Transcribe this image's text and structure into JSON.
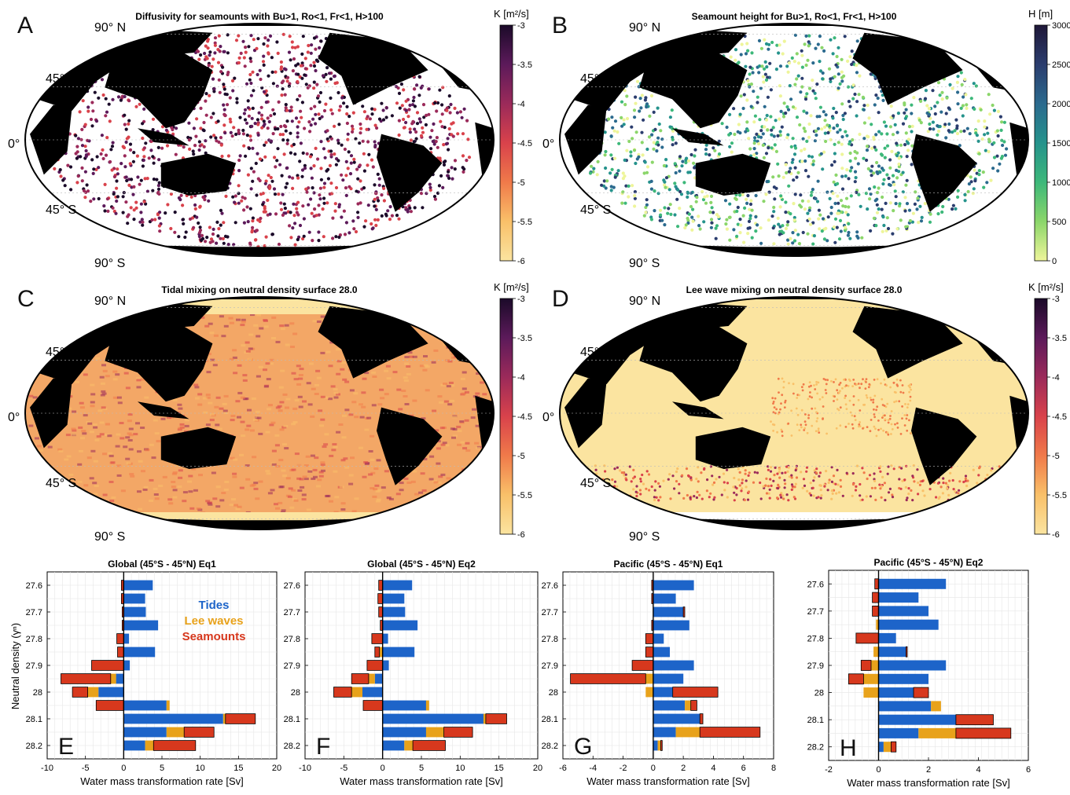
{
  "figure": {
    "maps": [
      {
        "letter": "A",
        "title": "Diffusivity for seamounts with Bu>1, Ro<1, Fr<1, H>100",
        "lat_labels": [
          "90° N",
          "45° N",
          "0°",
          "45° S",
          "90° S"
        ],
        "colorbar": {
          "label": "K [m²/s]",
          "ticks": [
            "-3",
            "-3.5",
            "-4",
            "-4.5",
            "-5",
            "-5.5",
            "-6"
          ],
          "colors": [
            "#1b0a29",
            "#5c1a5a",
            "#9b2a5a",
            "#d9424b",
            "#f07a4a",
            "#f9c069",
            "#fbe4a0"
          ]
        },
        "style": "dots-magma"
      },
      {
        "letter": "B",
        "title": "Seamount height for Bu>1, Ro<1, Fr<1, H>100",
        "lat_labels": [
          "90° N",
          "45° N",
          "0°",
          "45° S",
          "90° S"
        ],
        "colorbar": {
          "label": "H [m]",
          "ticks": [
            "3000",
            "2500",
            "2000",
            "1500",
            "1000",
            "500",
            "0"
          ],
          "colors": [
            "#1f1738",
            "#2b3d6e",
            "#2b6a8e",
            "#25938c",
            "#3db87a",
            "#8bd66a",
            "#eef59a"
          ]
        },
        "style": "dots-viridis"
      },
      {
        "letter": "C",
        "title": "Tidal mixing on neutral density surface 28.0",
        "lat_labels": [
          "90° N",
          "45° N",
          "0°",
          "45° S",
          "90° S"
        ],
        "colorbar": {
          "label": "K [m²/s]",
          "ticks": [
            "-3",
            "-3.5",
            "-4",
            "-4.5",
            "-5",
            "-5.5",
            "-6"
          ],
          "colors": [
            "#1b0a29",
            "#5c1a5a",
            "#9b2a5a",
            "#d9424b",
            "#f07a4a",
            "#f9c069",
            "#fbe4a0"
          ]
        },
        "style": "fill-tidal"
      },
      {
        "letter": "D",
        "title": "Lee wave mixing on neutral density surface 28.0",
        "lat_labels": [
          "90° N",
          "45° N",
          "0°",
          "45° S",
          "90° S"
        ],
        "colorbar": {
          "label": "K [m²/s]",
          "ticks": [
            "-3",
            "-3.5",
            "-4",
            "-4.5",
            "-5",
            "-5.5",
            "-6"
          ],
          "colors": [
            "#1b0a29",
            "#5c1a5a",
            "#9b2a5a",
            "#d9424b",
            "#f07a4a",
            "#f9c069",
            "#fbe4a0"
          ]
        },
        "style": "fill-lee"
      }
    ],
    "legend": {
      "tides": "Tides",
      "lee": "Lee waves",
      "seamounts": "Seamounts"
    },
    "colors": {
      "tides": "#1d64c9",
      "lee": "#e8a21b",
      "seamounts": "#d7381d",
      "land": "#000000"
    },
    "ylabel": "Neutral density (γⁿ)",
    "xlabel": "Water mass transformation rate [Sv]"
  },
  "chart_data": [
    {
      "type": "bar",
      "letter": "E",
      "title": "Global (45°S - 45°N) Eq1",
      "xlim": [
        -10,
        20
      ],
      "xticks": [
        "-10",
        "-5",
        "0",
        "5",
        "10",
        "15",
        "20"
      ],
      "categories": [
        "27.6",
        "27.7",
        "27.8",
        "27.9",
        "28",
        "28.1",
        "28.2"
      ],
      "bars": [
        {
          "y": 27.6,
          "tides": [
            0,
            3.8
          ],
          "lee": null,
          "sea": [
            -0.3,
            0
          ]
        },
        {
          "y": 27.65,
          "tides": [
            0,
            2.8
          ],
          "lee": null,
          "sea": [
            -0.3,
            0
          ]
        },
        {
          "y": 27.7,
          "tides": [
            0,
            2.9
          ],
          "lee": null,
          "sea": [
            -0.2,
            0
          ]
        },
        {
          "y": 27.75,
          "tides": [
            0,
            4.5
          ],
          "lee": null,
          "sea": [
            -0.2,
            0
          ]
        },
        {
          "y": 27.8,
          "tides": [
            0,
            0.7
          ],
          "lee": null,
          "sea": [
            -0.9,
            0
          ]
        },
        {
          "y": 27.85,
          "tides": [
            0,
            4.1
          ],
          "lee": null,
          "sea": [
            -0.8,
            0
          ]
        },
        {
          "y": 27.9,
          "tides": [
            0,
            0.8
          ],
          "lee": null,
          "sea": [
            -4.2,
            0
          ]
        },
        {
          "y": 27.95,
          "tides": [
            -1,
            0
          ],
          "lee": [
            -1.7,
            -1
          ],
          "sea": [
            -8.2,
            -1.7
          ]
        },
        {
          "y": 28.0,
          "tides": [
            -3.3,
            0
          ],
          "lee": [
            -4.7,
            -3.3
          ],
          "sea": [
            -6.7,
            -4.7
          ]
        },
        {
          "y": 28.05,
          "tides": [
            0,
            5.6
          ],
          "lee": [
            5.6,
            6.0
          ],
          "sea": [
            -3.6,
            0
          ]
        },
        {
          "y": 28.1,
          "tides": [
            0,
            13.0
          ],
          "lee": [
            13.0,
            13.3
          ],
          "sea": [
            13.3,
            17.2
          ]
        },
        {
          "y": 28.15,
          "tides": [
            0,
            5.6
          ],
          "lee": [
            5.6,
            7.9
          ],
          "sea": [
            7.9,
            11.8
          ]
        },
        {
          "y": 28.2,
          "tides": [
            0,
            2.8
          ],
          "lee": [
            2.8,
            3.9
          ],
          "sea": [
            3.9,
            9.4
          ]
        }
      ]
    },
    {
      "type": "bar",
      "letter": "F",
      "title": "Global (45°S - 45°N) Eq2",
      "xlim": [
        -10,
        20
      ],
      "xticks": [
        "-10",
        "-5",
        "0",
        "5",
        "10",
        "15",
        "20"
      ],
      "categories": [
        "27.6",
        "27.7",
        "27.8",
        "27.9",
        "28",
        "28.1",
        "28.2"
      ],
      "bars": [
        {
          "y": 27.6,
          "tides": [
            0,
            3.8
          ],
          "lee": null,
          "sea": [
            -0.5,
            0
          ]
        },
        {
          "y": 27.65,
          "tides": [
            0,
            2.8
          ],
          "lee": null,
          "sea": [
            -0.6,
            0
          ]
        },
        {
          "y": 27.7,
          "tides": [
            0,
            2.9
          ],
          "lee": null,
          "sea": [
            -0.5,
            0
          ]
        },
        {
          "y": 27.75,
          "tides": [
            0,
            4.5
          ],
          "lee": null,
          "sea": [
            -0.3,
            0
          ]
        },
        {
          "y": 27.8,
          "tides": [
            0,
            0.7
          ],
          "lee": null,
          "sea": [
            -1.4,
            0
          ]
        },
        {
          "y": 27.85,
          "tides": [
            0,
            4.1
          ],
          "lee": [
            -0.4,
            0
          ],
          "sea": [
            -1.0,
            -0.4
          ]
        },
        {
          "y": 27.9,
          "tides": [
            0,
            0.8
          ],
          "lee": null,
          "sea": [
            -2.0,
            0
          ]
        },
        {
          "y": 27.95,
          "tides": [
            -1,
            0
          ],
          "lee": [
            -1.8,
            -1
          ],
          "sea": [
            -4.0,
            -1.8
          ]
        },
        {
          "y": 28.0,
          "tides": [
            -2.6,
            0
          ],
          "lee": [
            -4.0,
            -2.6
          ],
          "sea": [
            -6.3,
            -4.0
          ]
        },
        {
          "y": 28.05,
          "tides": [
            0,
            5.6
          ],
          "lee": [
            5.6,
            6.0
          ],
          "sea": [
            -2.5,
            0
          ]
        },
        {
          "y": 28.1,
          "tides": [
            0,
            13.0
          ],
          "lee": [
            13.0,
            13.3
          ],
          "sea": [
            13.3,
            16.0
          ]
        },
        {
          "y": 28.15,
          "tides": [
            0,
            5.6
          ],
          "lee": [
            5.6,
            7.9
          ],
          "sea": [
            7.9,
            11.6
          ]
        },
        {
          "y": 28.2,
          "tides": [
            0,
            2.8
          ],
          "lee": [
            2.8,
            3.9
          ],
          "sea": [
            3.9,
            8.1
          ]
        }
      ]
    },
    {
      "type": "bar",
      "letter": "G",
      "title": "Pacific (45°S - 45°N) Eq1",
      "xlim": [
        -6,
        8
      ],
      "xticks": [
        "-6",
        "-4",
        "-2",
        "0",
        "2",
        "4",
        "6",
        "8"
      ],
      "categories": [
        "27.6",
        "27.7",
        "27.8",
        "27.9",
        "28",
        "28.1",
        "28.2"
      ],
      "bars": [
        {
          "y": 27.6,
          "tides": [
            0,
            2.7
          ],
          "lee": null,
          "sea": [
            -0.1,
            0
          ]
        },
        {
          "y": 27.65,
          "tides": [
            0,
            1.5
          ],
          "lee": null,
          "sea": [
            -0.1,
            0
          ]
        },
        {
          "y": 27.7,
          "tides": [
            0,
            2.0
          ],
          "lee": null,
          "sea": [
            2.0,
            2.1
          ]
        },
        {
          "y": 27.75,
          "tides": [
            0,
            2.4
          ],
          "lee": null,
          "sea": [
            -0.1,
            0
          ]
        },
        {
          "y": 27.8,
          "tides": [
            0,
            0.7
          ],
          "lee": null,
          "sea": [
            -0.5,
            0
          ]
        },
        {
          "y": 27.85,
          "tides": [
            0,
            1.1
          ],
          "lee": null,
          "sea": [
            -0.5,
            0
          ]
        },
        {
          "y": 27.9,
          "tides": [
            0,
            2.7
          ],
          "lee": null,
          "sea": [
            -1.4,
            0
          ]
        },
        {
          "y": 27.95,
          "tides": [
            0,
            2.0
          ],
          "lee": [
            -0.5,
            0
          ],
          "sea": [
            -5.5,
            -0.5
          ]
        },
        {
          "y": 28.0,
          "tides": [
            0,
            1.3
          ],
          "lee": [
            -0.5,
            0
          ],
          "sea": [
            1.3,
            4.3
          ]
        },
        {
          "y": 28.05,
          "tides": [
            0,
            2.1
          ],
          "lee": [
            2.1,
            2.5
          ],
          "sea": [
            2.5,
            2.9
          ]
        },
        {
          "y": 28.1,
          "tides": [
            0,
            3.1
          ],
          "lee": null,
          "sea": [
            3.1,
            3.3
          ]
        },
        {
          "y": 28.15,
          "tides": [
            0,
            1.5
          ],
          "lee": [
            1.5,
            3.1
          ],
          "sea": [
            3.1,
            7.1
          ]
        },
        {
          "y": 28.2,
          "tides": [
            0,
            0.3
          ],
          "lee": [
            0.3,
            0.5
          ],
          "sea": [
            0.5,
            0.6
          ]
        }
      ]
    },
    {
      "type": "bar",
      "letter": "H",
      "title": "Pacific (45°S - 45°N) Eq2",
      "xlim": [
        -2,
        6
      ],
      "xticks": [
        "-2",
        "0",
        "2",
        "4",
        "6"
      ],
      "categories": [
        "27.6",
        "27.7",
        "27.8",
        "27.9",
        "28",
        "28.1",
        "28.2"
      ],
      "bars": [
        {
          "y": 27.6,
          "tides": [
            0,
            2.7
          ],
          "lee": null,
          "sea": [
            -0.15,
            0
          ]
        },
        {
          "y": 27.65,
          "tides": [
            0,
            1.6
          ],
          "lee": null,
          "sea": [
            -0.25,
            0
          ]
        },
        {
          "y": 27.7,
          "tides": [
            0,
            2.0
          ],
          "lee": null,
          "sea": [
            -0.25,
            0
          ]
        },
        {
          "y": 27.75,
          "tides": [
            0,
            2.4
          ],
          "lee": [
            -0.1,
            0
          ],
          "sea": null
        },
        {
          "y": 27.8,
          "tides": [
            0,
            0.7
          ],
          "lee": null,
          "sea": [
            -0.9,
            0
          ]
        },
        {
          "y": 27.85,
          "tides": [
            0,
            1.1
          ],
          "lee": [
            -0.2,
            0
          ],
          "sea": [
            1.1,
            1.15
          ]
        },
        {
          "y": 27.9,
          "tides": [
            0,
            2.7
          ],
          "lee": [
            -0.3,
            0
          ],
          "sea": [
            -0.7,
            -0.3
          ]
        },
        {
          "y": 27.95,
          "tides": [
            0,
            2.0
          ],
          "lee": [
            -0.6,
            0
          ],
          "sea": [
            -1.2,
            -0.6
          ]
        },
        {
          "y": 28.0,
          "tides": [
            0,
            1.4
          ],
          "lee": [
            -0.6,
            0
          ],
          "sea": [
            1.4,
            2.0
          ]
        },
        {
          "y": 28.05,
          "tides": [
            0,
            2.1
          ],
          "lee": [
            2.1,
            2.5
          ],
          "sea": null
        },
        {
          "y": 28.1,
          "tides": [
            0,
            3.1
          ],
          "lee": null,
          "sea": [
            3.1,
            4.6
          ]
        },
        {
          "y": 28.15,
          "tides": [
            0,
            1.6
          ],
          "lee": [
            1.6,
            3.1
          ],
          "sea": [
            3.1,
            5.3
          ]
        },
        {
          "y": 28.2,
          "tides": [
            0,
            0.2
          ],
          "lee": [
            0.2,
            0.5
          ],
          "sea": [
            0.5,
            0.7
          ]
        }
      ]
    }
  ]
}
